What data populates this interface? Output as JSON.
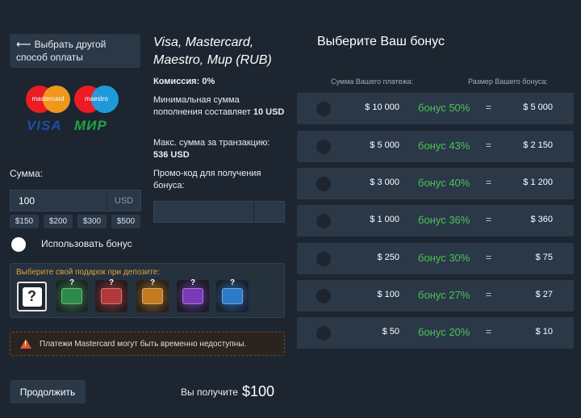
{
  "back_button": {
    "label": "Выбрать другой способ оплаты"
  },
  "logos": {
    "mastercard": "mastercard",
    "maestro": "maestro",
    "visa": "VISA",
    "mir": "МИР"
  },
  "amount": {
    "label": "Сумма:",
    "value": "100",
    "currency": "USD",
    "quick": [
      "$150",
      "$200",
      "$300",
      "$500"
    ]
  },
  "use_bonus": {
    "label": "Использовать бонус",
    "enabled": false
  },
  "gifts": {
    "title": "Выберите свой подарок при депозите:",
    "question": "?",
    "chests": [
      {
        "name": "green-chest",
        "color": "#2e8a4a"
      },
      {
        "name": "red-chest",
        "color": "#b03a3a"
      },
      {
        "name": "orange-chest",
        "color": "#c47a1e"
      },
      {
        "name": "purple-chest",
        "color": "#7a3ab8"
      },
      {
        "name": "blue-chest",
        "color": "#2d7ac8"
      }
    ]
  },
  "warning": {
    "text": "Платежи Mastercard могут быть временно недоступны."
  },
  "footer": {
    "continue": "Продолжить",
    "receive_label": "Вы получите",
    "receive_value": "$100"
  },
  "method": {
    "title": "Visa, Mastercard, Maestro, Мир (RUB)",
    "commission_label": "Комиссия:",
    "commission_value": "0%",
    "min_label": "Минимальная сумма пополнения составляет",
    "min_value": "10 USD",
    "max_label": "Макс. сумма за транзакцию:",
    "max_value": "536 USD",
    "promo_label": "Промо-код для получения бонуса:"
  },
  "bonus": {
    "title": "Выберите Ваш бонус",
    "col_payment": "Сумма Вашего платежа:",
    "col_bonus": "Размер Вашего бонуса:",
    "equals": "=",
    "rows": [
      {
        "payment": "$ 10 000",
        "percent": "бонус 50%",
        "value": "$ 5 000"
      },
      {
        "payment": "$ 5 000",
        "percent": "бонус 43%",
        "value": "$ 2 150"
      },
      {
        "payment": "$ 3 000",
        "percent": "бонус 40%",
        "value": "$ 1 200"
      },
      {
        "payment": "$ 1 000",
        "percent": "бонус 36%",
        "value": "$ 360"
      },
      {
        "payment": "$ 250",
        "percent": "бонус 30%",
        "value": "$ 75"
      },
      {
        "payment": "$ 100",
        "percent": "бонус 27%",
        "value": "$ 27"
      },
      {
        "payment": "$ 50",
        "percent": "бонус 20%",
        "value": "$ 10"
      }
    ]
  },
  "colors": {
    "accent_green": "#4cc253",
    "panel": "#2b3848",
    "background": "#1d2530",
    "warning": "#e05530"
  }
}
